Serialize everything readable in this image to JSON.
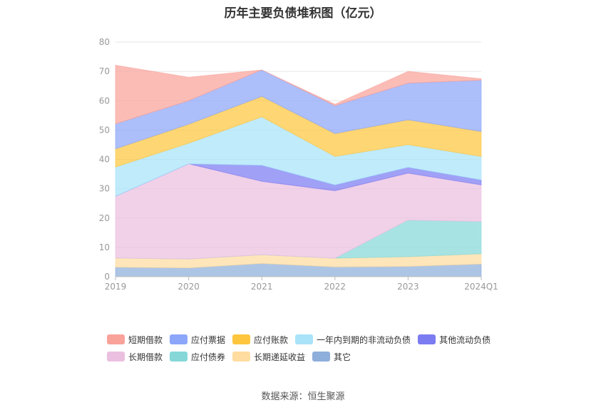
{
  "source_text": "数据来源：恒生聚源",
  "chart_data": {
    "type": "area",
    "stacked": true,
    "title": "历年主要负债堆积图（亿元）",
    "categories": [
      "2019",
      "2020",
      "2021",
      "2022",
      "2023",
      "2024Q1"
    ],
    "ylim": [
      0,
      80
    ],
    "yticks": [
      0,
      10,
      20,
      30,
      40,
      50,
      60,
      70,
      80
    ],
    "grid": true,
    "legend_position": "bottom",
    "series": [
      {
        "name": "其它",
        "color": "#8eaedb",
        "values": [
          3.2,
          3.0,
          4.5,
          3.3,
          3.5,
          4.3
        ]
      },
      {
        "name": "长期递延收益",
        "color": "#ffdca0",
        "values": [
          3.2,
          3.0,
          3.0,
          3.0,
          3.3,
          3.5
        ]
      },
      {
        "name": "应付债券",
        "color": "#86d8d8",
        "values": [
          0,
          0,
          0,
          0,
          12.5,
          11.0
        ]
      },
      {
        "name": "长期借款",
        "color": "#ebbfdf",
        "values": [
          21.0,
          32.5,
          25.0,
          23.0,
          16.0,
          12.5
        ]
      },
      {
        "name": "其他流动负债",
        "color": "#7b7bf2",
        "values": [
          0,
          0,
          5.5,
          2.0,
          2.0,
          1.7
        ]
      },
      {
        "name": "一年内到期的非流动负债",
        "color": "#a8e3fa",
        "values": [
          10.0,
          7.0,
          16.5,
          9.7,
          7.7,
          8.0
        ]
      },
      {
        "name": "应付账款",
        "color": "#fdc63e",
        "values": [
          6.2,
          6.5,
          7.0,
          7.8,
          8.5,
          8.5
        ]
      },
      {
        "name": "应付票据",
        "color": "#8ca6fa",
        "values": [
          8.5,
          8.0,
          9.0,
          9.5,
          12.5,
          17.5
        ]
      },
      {
        "name": "短期借款",
        "color": "#f9a29a",
        "values": [
          20.0,
          8.0,
          0,
          0.5,
          4.0,
          0.5
        ]
      }
    ],
    "legend_order": [
      "短期借款",
      "应付票据",
      "应付账款",
      "一年内到期的非流动负债",
      "其他流动负债",
      "长期借款",
      "应付债券",
      "长期递延收益",
      "其它"
    ]
  }
}
